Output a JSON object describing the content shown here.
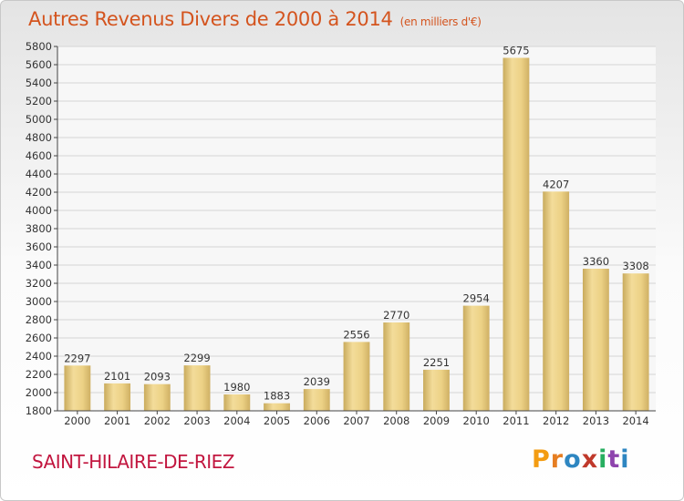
{
  "header": {
    "title": "Autres Revenus Divers de 2000 à 2014",
    "subtitle": "(en milliers d'€)"
  },
  "footer": {
    "city": "SAINT-HILAIRE-DE-RIEZ",
    "logo_letters": [
      "P",
      "r",
      "o",
      "x",
      "i",
      "t",
      "i"
    ],
    "logo_colors": [
      "#f39c12",
      "#e67e22",
      "#2e86c1",
      "#c0392b",
      "#27ae60",
      "#8e44ad",
      "#2e86c1"
    ]
  },
  "chart_data": {
    "type": "bar",
    "title": "Autres Revenus Divers de 2000 à 2014",
    "subtitle": "(en milliers d'€)",
    "xlabel": "",
    "ylabel": "",
    "categories": [
      "2000",
      "2001",
      "2002",
      "2003",
      "2004",
      "2005",
      "2006",
      "2007",
      "2008",
      "2009",
      "2010",
      "2011",
      "2012",
      "2013",
      "2014"
    ],
    "values": [
      2297,
      2101,
      2093,
      2299,
      1980,
      1883,
      2039,
      2556,
      2770,
      2251,
      2954,
      5675,
      4207,
      3360,
      3308
    ],
    "ylim": [
      1800,
      5800
    ],
    "yticks": [
      1800,
      2000,
      2200,
      2400,
      2600,
      2800,
      3000,
      3200,
      3400,
      3600,
      3800,
      4000,
      4200,
      4400,
      4600,
      4800,
      5000,
      5200,
      5400,
      5600,
      5800
    ],
    "grid": true,
    "bar_color": "#e8c97a"
  }
}
